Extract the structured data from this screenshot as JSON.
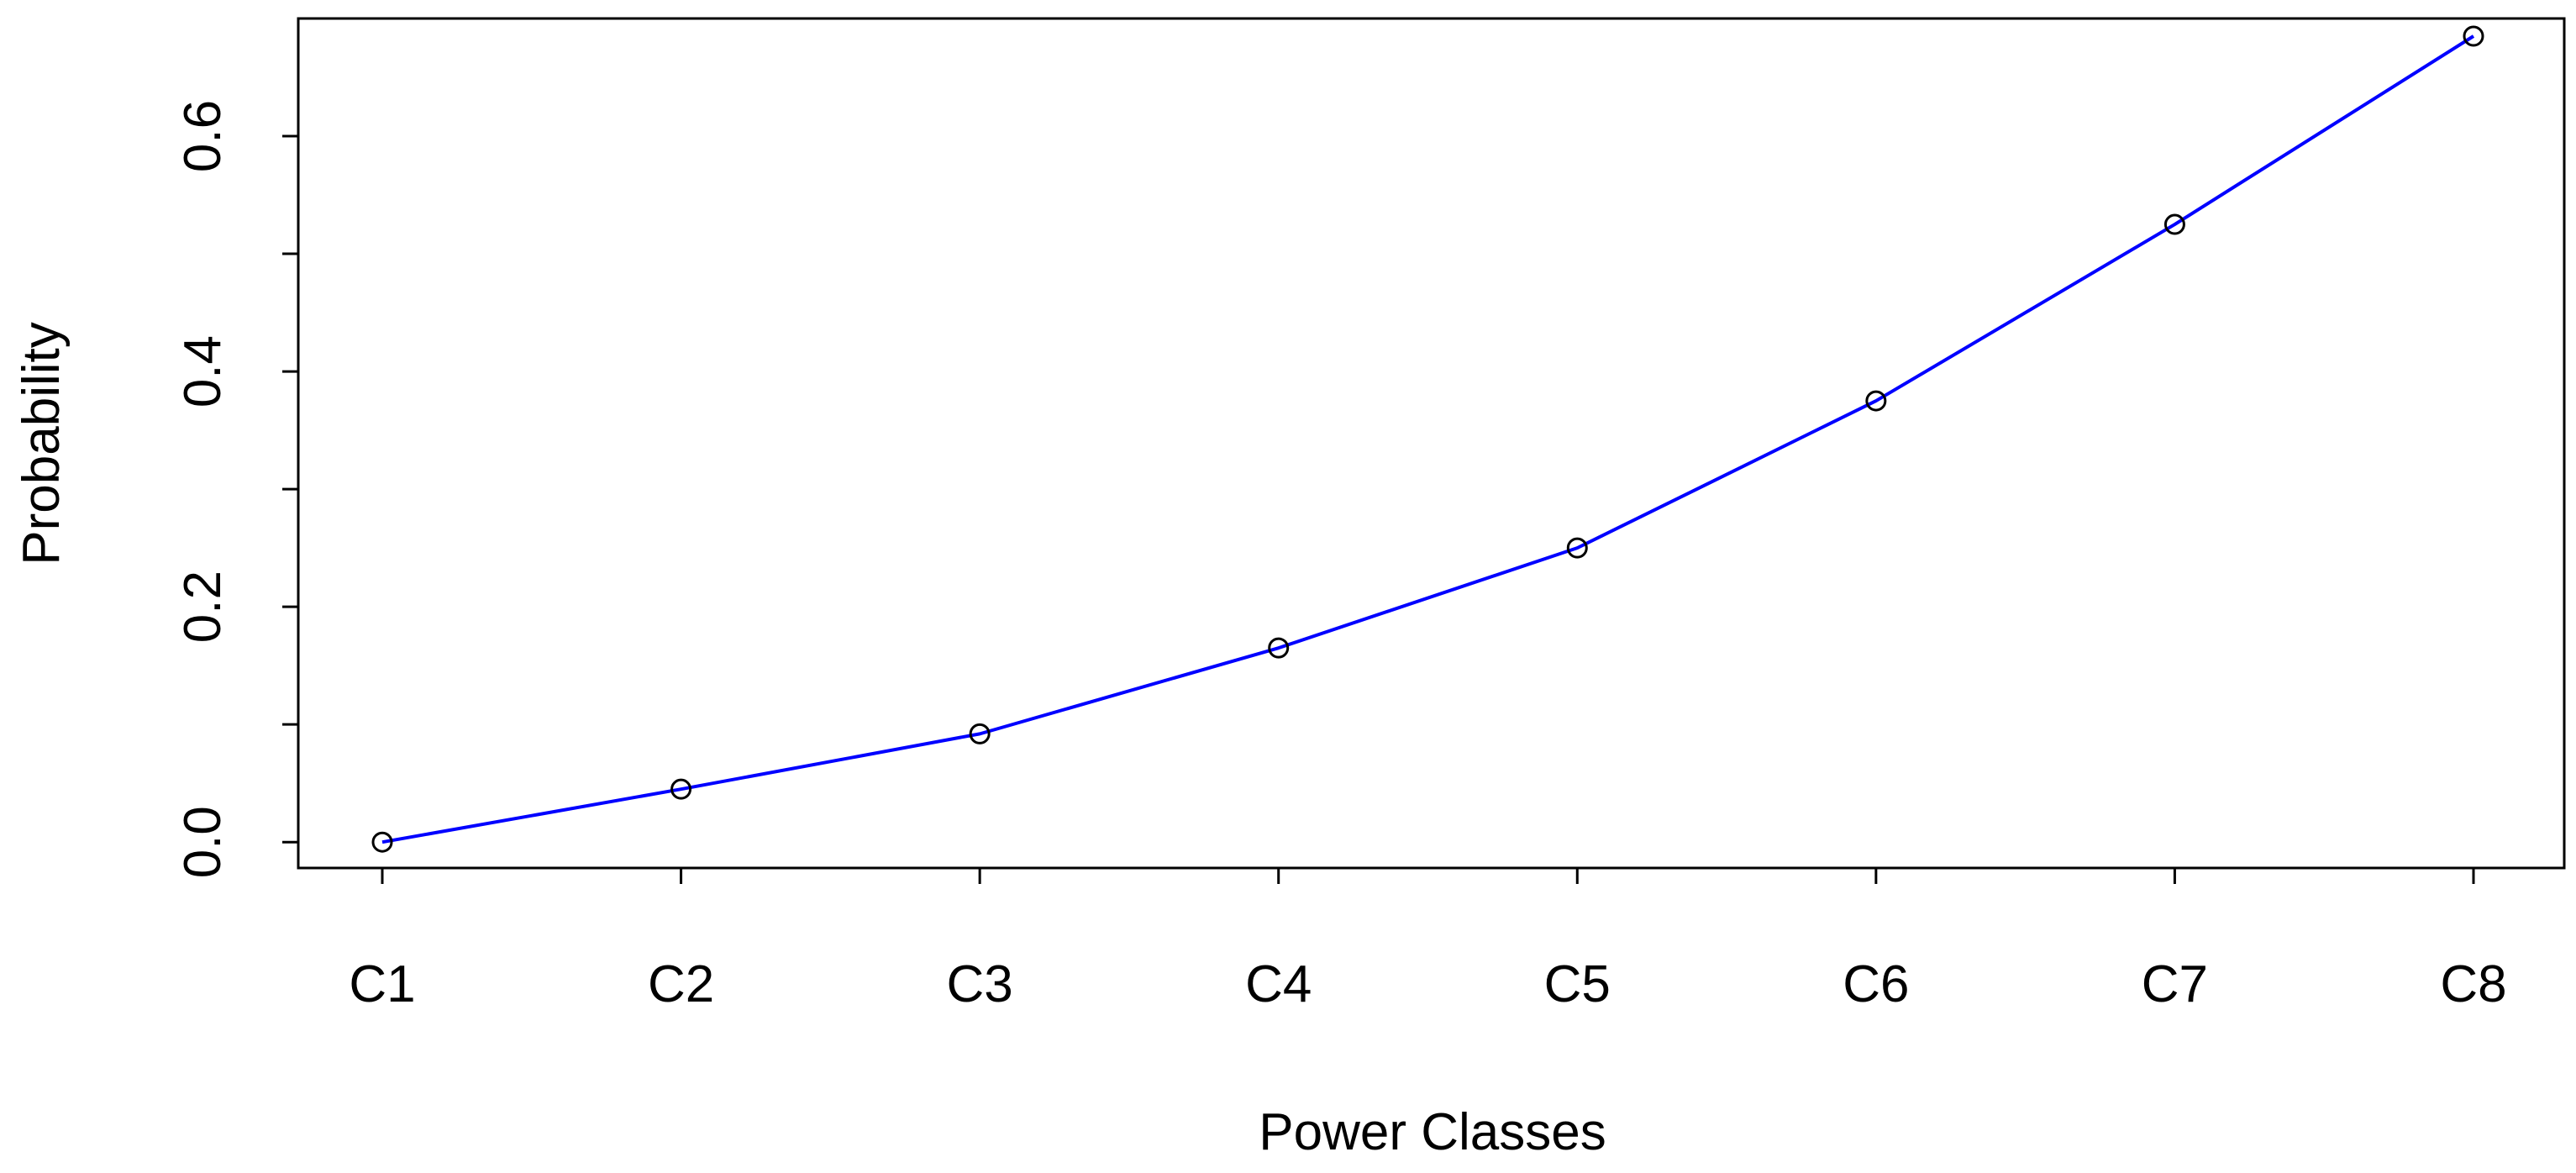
{
  "chart_data": {
    "type": "line",
    "title": "",
    "xlabel": "Power Classes",
    "ylabel": "Probability",
    "categories": [
      "C1",
      "C2",
      "C3",
      "C4",
      "C5",
      "C6",
      "C7",
      "C8"
    ],
    "series": [
      {
        "values": [
          0.0,
          0.045,
          0.092,
          0.165,
          0.25,
          0.375,
          0.525,
          0.685
        ],
        "color": "#0000ff",
        "marker": "open-circle",
        "marker_color": "#000000"
      }
    ],
    "yticks": [
      0.0,
      0.2,
      0.4,
      0.6
    ],
    "ytick_labels": [
      "0.0",
      "0.2",
      "0.4",
      "0.6"
    ],
    "yticks_minor": [
      0.1,
      0.3,
      0.5
    ],
    "ylim": [
      -0.022,
      0.7
    ],
    "grid": false,
    "legend": "none"
  }
}
